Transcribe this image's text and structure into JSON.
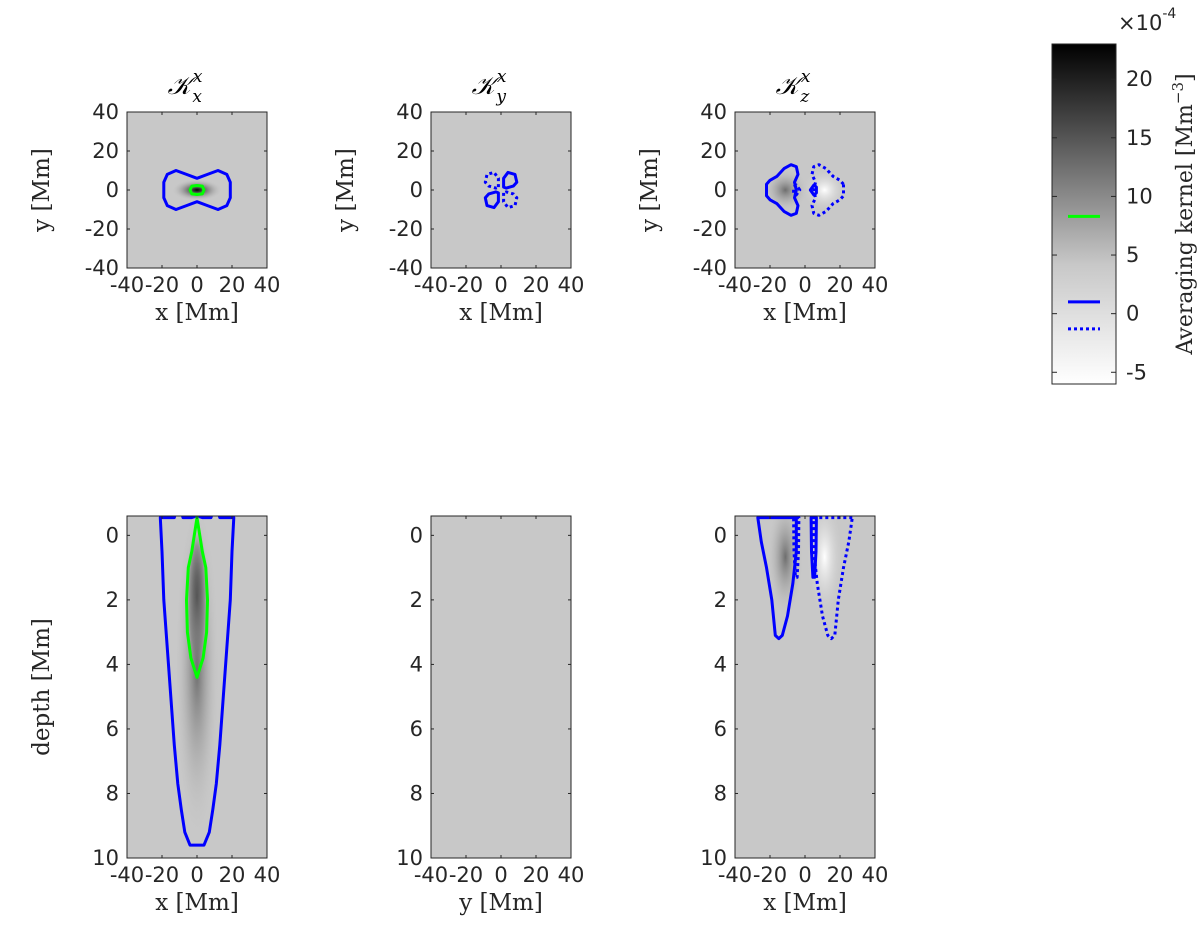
{
  "chart_data": [
    {
      "type": "heatmap",
      "panel": "top-left",
      "title": "𝒦",
      "title_sub": "x",
      "title_sup": "x",
      "xlabel": "x [Mm]",
      "ylabel": "y [Mm]",
      "xlim": [
        -40,
        40
      ],
      "ylim": [
        -40,
        40
      ],
      "xticks": [
        -40,
        -20,
        0,
        20,
        40
      ],
      "yticks": [
        -40,
        -20,
        0,
        20,
        40
      ],
      "contours": [
        {
          "color": "#0000ff",
          "style": "solid",
          "points": [
            [
              -19,
              -4
            ],
            [
              -17,
              -8
            ],
            [
              -12,
              -10
            ],
            [
              -6,
              -8
            ],
            [
              0,
              -6
            ],
            [
              6,
              -8
            ],
            [
              12,
              -10
            ],
            [
              17,
              -8
            ],
            [
              19,
              -4
            ],
            [
              19,
              4
            ],
            [
              17,
              8
            ],
            [
              12,
              10
            ],
            [
              6,
              8
            ],
            [
              0,
              6
            ],
            [
              -6,
              8
            ],
            [
              -12,
              10
            ],
            [
              -17,
              8
            ],
            [
              -19,
              4
            ]
          ]
        },
        {
          "color": "#00ff00",
          "style": "solid",
          "points": [
            [
              -4,
              0
            ],
            [
              -3,
              -2
            ],
            [
              0,
              -2.3
            ],
            [
              3,
              -2
            ],
            [
              4,
              0
            ],
            [
              3,
              2
            ],
            [
              0,
              2.3
            ],
            [
              -3,
              2
            ]
          ]
        }
      ]
    },
    {
      "type": "heatmap",
      "panel": "top-middle",
      "title": "𝒦",
      "title_sub": "y",
      "title_sup": "x",
      "xlabel": "x [Mm]",
      "ylabel": "y [Mm]",
      "xlim": [
        -40,
        40
      ],
      "ylim": [
        -40,
        40
      ],
      "xticks": [
        -40,
        -20,
        0,
        20,
        40
      ],
      "yticks": [
        -40,
        -20,
        0,
        20,
        40
      ],
      "contours": [
        {
          "color": "#0000ff",
          "style": "solid",
          "points": [
            [
              1.5,
              1.5
            ],
            [
              1.5,
              6
            ],
            [
              4,
              9
            ],
            [
              8,
              8
            ],
            [
              9,
              4
            ],
            [
              7,
              2
            ],
            [
              3,
              1
            ]
          ]
        },
        {
          "color": "#0000ff",
          "style": "solid",
          "points": [
            [
              -1.5,
              -1.5
            ],
            [
              -1.5,
              -6
            ],
            [
              -4,
              -9
            ],
            [
              -8,
              -8
            ],
            [
              -9,
              -4
            ],
            [
              -7,
              -2
            ],
            [
              -3,
              -1
            ]
          ]
        },
        {
          "color": "#0000ff",
          "style": "dotted",
          "points": [
            [
              -1.5,
              1.5
            ],
            [
              -1.5,
              6
            ],
            [
              -4,
              9
            ],
            [
              -8,
              8
            ],
            [
              -9,
              4
            ],
            [
              -7,
              2
            ],
            [
              -3,
              1
            ]
          ]
        },
        {
          "color": "#0000ff",
          "style": "dotted",
          "points": [
            [
              1.5,
              -1.5
            ],
            [
              1.5,
              -6
            ],
            [
              4,
              -9
            ],
            [
              8,
              -8
            ],
            [
              9,
              -4
            ],
            [
              7,
              -2
            ],
            [
              3,
              -1
            ]
          ]
        }
      ]
    },
    {
      "type": "heatmap",
      "panel": "top-right",
      "title": "𝒦",
      "title_sub": "z",
      "title_sup": "x",
      "xlabel": "x [Mm]",
      "ylabel": "y [Mm]",
      "xlim": [
        -40,
        40
      ],
      "ylim": [
        -40,
        40
      ],
      "xticks": [
        -40,
        -20,
        0,
        20,
        40
      ],
      "yticks": [
        -40,
        -20,
        0,
        20,
        40
      ],
      "contours": [
        {
          "color": "#0000ff",
          "style": "solid",
          "points": [
            [
              -22,
              3
            ],
            [
              -20,
              5
            ],
            [
              -16,
              7
            ],
            [
              -12,
              11
            ],
            [
              -8,
              13
            ],
            [
              -5,
              12
            ],
            [
              -4,
              8
            ],
            [
              -6,
              4
            ],
            [
              -5,
              0
            ],
            [
              -6,
              -4
            ],
            [
              -4,
              -8
            ],
            [
              -5,
              -12
            ],
            [
              -8,
              -13
            ],
            [
              -12,
              -11
            ],
            [
              -16,
              -7
            ],
            [
              -20,
              -5
            ],
            [
              -22,
              -3
            ]
          ]
        },
        {
          "color": "#0000ff",
          "style": "solid",
          "points": [
            [
              3,
              0
            ],
            [
              5,
              2.5
            ],
            [
              6.5,
              1.5
            ],
            [
              6.5,
              -1.5
            ],
            [
              5,
              -2.5
            ]
          ]
        },
        {
          "color": "#0000ff",
          "style": "dotted",
          "points": [
            [
              22,
              3
            ],
            [
              20,
              5
            ],
            [
              16,
              7
            ],
            [
              12,
              11
            ],
            [
              8,
              13
            ],
            [
              5,
              12
            ],
            [
              4,
              8
            ],
            [
              6,
              4
            ],
            [
              5,
              0
            ],
            [
              6,
              -4
            ],
            [
              4,
              -8
            ],
            [
              5,
              -12
            ],
            [
              8,
              -13
            ],
            [
              12,
              -11
            ],
            [
              16,
              -7
            ],
            [
              20,
              -5
            ],
            [
              22,
              -3
            ]
          ]
        },
        {
          "color": "#0000ff",
          "style": "dotted",
          "points": [
            [
              -3,
              0
            ],
            [
              -5,
              2.5
            ],
            [
              -6.5,
              1.5
            ],
            [
              -6.5,
              -1.5
            ],
            [
              -5,
              -2.5
            ]
          ]
        }
      ]
    },
    {
      "type": "heatmap",
      "panel": "bottom-left",
      "xlabel": "x [Mm]",
      "ylabel": "depth [Mm]",
      "xlim": [
        -40,
        40
      ],
      "ylim": [
        -0.6,
        10
      ],
      "xticks": [
        -40,
        -20,
        0,
        20,
        40
      ],
      "yticks": [
        0,
        2,
        4,
        6,
        8,
        10
      ],
      "contours": [
        {
          "color": "#0000ff",
          "style": "solid",
          "points": [
            [
              -21,
              -0.55
            ],
            [
              -16,
              -0.55
            ],
            [
              -13,
              -0.55
            ],
            [
              -12,
              -0.75
            ],
            [
              -9,
              -0.75
            ],
            [
              -8,
              -0.55
            ],
            [
              -3,
              -0.55
            ],
            [
              0,
              -0.6
            ],
            [
              3,
              -0.55
            ],
            [
              8,
              -0.55
            ],
            [
              9,
              -0.75
            ],
            [
              12,
              -0.75
            ],
            [
              13,
              -0.55
            ],
            [
              16,
              -0.55
            ],
            [
              21,
              -0.55
            ],
            [
              20,
              0.5
            ],
            [
              19,
              2
            ],
            [
              17,
              3.5
            ],
            [
              15,
              5
            ],
            [
              13,
              6.5
            ],
            [
              11,
              7.7
            ],
            [
              9,
              8.5
            ],
            [
              7,
              9.2
            ],
            [
              4,
              9.6
            ],
            [
              -4,
              9.6
            ],
            [
              -7,
              9.2
            ],
            [
              -9,
              8.5
            ],
            [
              -11,
              7.7
            ],
            [
              -13,
              6.5
            ],
            [
              -15,
              5
            ],
            [
              -17,
              3.5
            ],
            [
              -19,
              2
            ],
            [
              -20,
              0.5
            ]
          ]
        },
        {
          "color": "#00ff00",
          "style": "solid",
          "points": [
            [
              0,
              -0.55
            ],
            [
              3,
              0.5
            ],
            [
              5,
              1
            ],
            [
              6,
              2
            ],
            [
              5.5,
              3
            ],
            [
              3.5,
              3.8
            ],
            [
              0,
              4.4
            ],
            [
              -3.5,
              3.8
            ],
            [
              -5.5,
              3
            ],
            [
              -6,
              2
            ],
            [
              -5,
              1
            ],
            [
              -3,
              0.5
            ]
          ]
        }
      ]
    },
    {
      "type": "heatmap",
      "panel": "bottom-middle",
      "xlabel": "y [Mm]",
      "ylabel": "",
      "xlim": [
        -40,
        40
      ],
      "ylim": [
        -0.6,
        10
      ],
      "xticks": [
        -40,
        -20,
        0,
        20,
        40
      ],
      "yticks": [
        0,
        2,
        4,
        6,
        8,
        10
      ],
      "contours": []
    },
    {
      "type": "heatmap",
      "panel": "bottom-right",
      "xlabel": "x [Mm]",
      "ylabel": "",
      "xlim": [
        -40,
        40
      ],
      "ylim": [
        -0.6,
        10
      ],
      "xticks": [
        -40,
        -20,
        0,
        20,
        40
      ],
      "yticks": [
        0,
        2,
        4,
        6,
        8,
        10
      ],
      "contours": [
        {
          "color": "#0000ff",
          "style": "solid",
          "points": [
            [
              -27,
              -0.55
            ],
            [
              -5,
              -0.55
            ],
            [
              -5,
              0.5
            ],
            [
              -7,
              1.5
            ],
            [
              -10,
              2.5
            ],
            [
              -13,
              3.1
            ],
            [
              -15,
              3.2
            ],
            [
              -17,
              3.1
            ],
            [
              -19,
              2
            ],
            [
              -22,
              1
            ],
            [
              -25,
              0.2
            ]
          ]
        },
        {
          "color": "#0000ff",
          "style": "solid",
          "points": [
            [
              3.5,
              -0.55
            ],
            [
              6.5,
              -0.55
            ],
            [
              6.3,
              0.5
            ],
            [
              5.5,
              1.3
            ],
            [
              4.5,
              1.3
            ],
            [
              3.7,
              0.5
            ]
          ]
        },
        {
          "color": "#0000ff",
          "style": "dotted",
          "points": [
            [
              27,
              -0.55
            ],
            [
              5,
              -0.55
            ],
            [
              5,
              0.5
            ],
            [
              7,
              1.5
            ],
            [
              10,
              2.5
            ],
            [
              13,
              3.1
            ],
            [
              15,
              3.2
            ],
            [
              17,
              3.1
            ],
            [
              19,
              2
            ],
            [
              22,
              1
            ],
            [
              25,
              0.2
            ]
          ]
        },
        {
          "color": "#0000ff",
          "style": "dotted",
          "points": [
            [
              -3.5,
              -0.55
            ],
            [
              -6.5,
              -0.55
            ],
            [
              -6.3,
              0.5
            ],
            [
              -5.5,
              1.3
            ],
            [
              -4.5,
              1.3
            ],
            [
              -3.7,
              0.5
            ]
          ]
        }
      ]
    }
  ],
  "colorbar": {
    "label": "Averaging kernel [Mm",
    "label_sup": "−3",
    "label_end": "]",
    "multiplier": "×10",
    "multiplier_exp": "-4",
    "range": [
      -6,
      23
    ],
    "ticks": [
      -5,
      0,
      5,
      10,
      15,
      20
    ],
    "markers": [
      {
        "value": 8.3,
        "color": "#00ff00",
        "style": "solid"
      },
      {
        "value": 1.0,
        "color": "#0000ff",
        "style": "solid"
      },
      {
        "value": -1.3,
        "color": "#0000ff",
        "style": "dotted"
      }
    ]
  }
}
